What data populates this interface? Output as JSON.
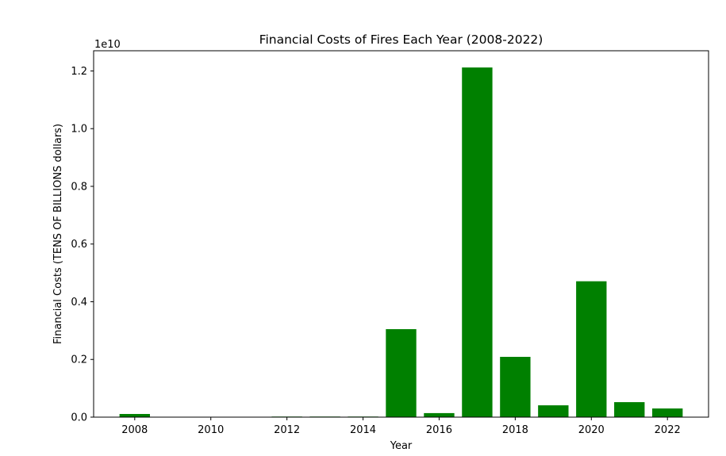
{
  "chart_data": {
    "type": "bar",
    "title": "Financial Costs of Fires Each Year (2008-2022)",
    "xlabel": "Year",
    "ylabel": "Financial Costs (TENS OF BILLIONS dollars)",
    "y_offset_text": "1e10",
    "y_scale_exponent": 10,
    "x": [
      2008,
      2012,
      2013,
      2014,
      2015,
      2016,
      2017,
      2018,
      2019,
      2020,
      2021,
      2022
    ],
    "values": [
      110000000,
      20000000,
      20000000,
      20000000,
      3050000000,
      140000000,
      12120000000,
      2090000000,
      410000000,
      4710000000,
      520000000,
      300000000
    ],
    "xlim": [
      2006.92,
      2023.08
    ],
    "ylim": [
      0,
      12700000000
    ],
    "x_ticks": [
      2008,
      2010,
      2012,
      2014,
      2016,
      2018,
      2020,
      2022
    ],
    "x_tick_labels": [
      "2008",
      "2010",
      "2012",
      "2014",
      "2016",
      "2018",
      "2020",
      "2022"
    ],
    "y_ticks": [
      0,
      2000000000,
      4000000000,
      6000000000,
      8000000000,
      10000000000,
      12000000000
    ],
    "y_tick_labels": [
      "0.0",
      "0.2",
      "0.4",
      "0.6",
      "0.8",
      "1.0",
      "1.2"
    ],
    "bar_color": "#008000",
    "grid": false,
    "legend": "none"
  }
}
